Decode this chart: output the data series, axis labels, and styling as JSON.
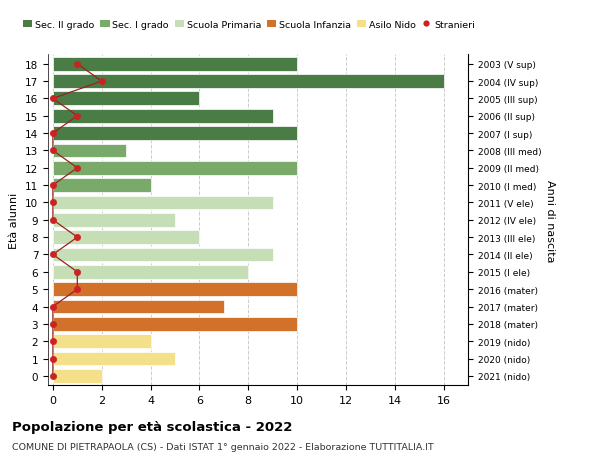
{
  "ages": [
    18,
    17,
    16,
    15,
    14,
    13,
    12,
    11,
    10,
    9,
    8,
    7,
    6,
    5,
    4,
    3,
    2,
    1,
    0
  ],
  "years": [
    "2003 (V sup)",
    "2004 (IV sup)",
    "2005 (III sup)",
    "2006 (II sup)",
    "2007 (I sup)",
    "2008 (III med)",
    "2009 (II med)",
    "2010 (I med)",
    "2011 (V ele)",
    "2012 (IV ele)",
    "2013 (III ele)",
    "2014 (II ele)",
    "2015 (I ele)",
    "2016 (mater)",
    "2017 (mater)",
    "2018 (mater)",
    "2019 (nido)",
    "2020 (nido)",
    "2021 (nido)"
  ],
  "values": [
    10,
    16,
    6,
    9,
    10,
    3,
    10,
    4,
    9,
    5,
    6,
    9,
    8,
    10,
    7,
    10,
    4,
    5,
    2
  ],
  "category_colors": [
    "#4a7c45",
    "#4a7c45",
    "#4a7c45",
    "#4a7c45",
    "#4a7c45",
    "#7aaa6a",
    "#7aaa6a",
    "#7aaa6a",
    "#c5deb5",
    "#c5deb5",
    "#c5deb5",
    "#c5deb5",
    "#c5deb5",
    "#d2722a",
    "#d2722a",
    "#d2722a",
    "#f5e08a",
    "#f5e08a",
    "#f5e08a"
  ],
  "legend_labels": [
    "Sec. II grado",
    "Sec. I grado",
    "Scuola Primaria",
    "Scuola Infanzia",
    "Asilo Nido",
    "Stranieri"
  ],
  "legend_colors": [
    "#4a7c45",
    "#7aaa6a",
    "#c5deb5",
    "#d2722a",
    "#f5e08a",
    "#cc2222"
  ],
  "ylabel_left": "Età alunni",
  "ylabel_right": "Anni di nascita",
  "title": "Popolazione per età scolastica - 2022",
  "subtitle": "COMUNE DI PIETRAPAOLA (CS) - Dati ISTAT 1° gennaio 2022 - Elaborazione TUTTITALIA.IT",
  "stranieri_x": [
    1,
    2,
    0,
    1,
    0,
    0,
    1,
    0,
    0,
    0,
    1,
    0,
    1,
    1,
    0,
    0,
    0,
    0,
    0
  ],
  "grid_color": "#cccccc",
  "bar_edge_color": "white"
}
